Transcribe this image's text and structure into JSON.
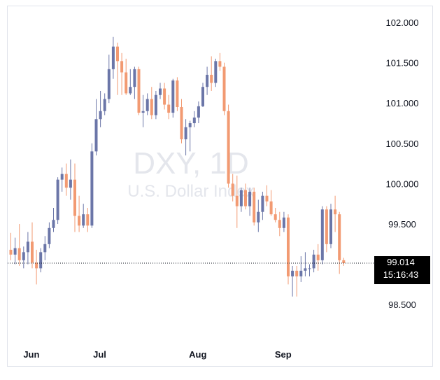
{
  "chart_data": {
    "type": "candlestick",
    "watermark": {
      "title": "DXY, 1D",
      "subtitle": "U.S. Dollar Index"
    },
    "ylim": [
      98.12,
      102.2
    ],
    "y_ticks": [
      "102.000",
      "101.500",
      "101.000",
      "100.500",
      "100.000",
      "99.500",
      "98.500"
    ],
    "x_ticks": [
      {
        "label": "Jun",
        "index": 4
      },
      {
        "label": "Jul",
        "index": 20
      },
      {
        "label": "Aug",
        "index": 43
      },
      {
        "label": "Sep",
        "index": 63
      }
    ],
    "last_price": {
      "value": "99.014",
      "countdown": "15:16:43",
      "level": 99.014
    },
    "colors": {
      "up": "#6b76a8",
      "down": "#f29a72",
      "tag_bg": "#000000",
      "grid_border": "#e0e3eb"
    },
    "candles": [
      [
        99.18,
        99.39,
        99.05,
        99.12
      ],
      [
        99.12,
        99.33,
        99.0,
        99.2
      ],
      [
        99.2,
        99.5,
        98.98,
        99.05
      ],
      [
        99.05,
        99.22,
        98.95,
        99.15
      ],
      [
        99.15,
        99.4,
        99.0,
        99.28
      ],
      [
        99.28,
        99.52,
        98.95,
        99.02
      ],
      [
        99.02,
        99.18,
        98.75,
        98.95
      ],
      [
        98.95,
        99.2,
        98.9,
        99.15
      ],
      [
        99.15,
        99.35,
        99.05,
        99.25
      ],
      [
        99.25,
        99.52,
        99.2,
        99.45
      ],
      [
        99.45,
        99.7,
        99.4,
        99.55
      ],
      [
        99.55,
        100.08,
        99.5,
        100.05
      ],
      [
        100.05,
        100.2,
        99.9,
        100.12
      ],
      [
        100.12,
        100.25,
        99.85,
        99.95
      ],
      [
        99.95,
        100.3,
        99.8,
        100.05
      ],
      [
        100.05,
        100.25,
        99.4,
        99.6
      ],
      [
        99.6,
        99.85,
        99.4,
        99.48
      ],
      [
        99.48,
        99.75,
        99.45,
        99.62
      ],
      [
        99.62,
        99.7,
        99.4,
        99.48
      ],
      [
        99.48,
        100.5,
        99.45,
        100.4
      ],
      [
        100.4,
        101.05,
        100.35,
        100.8
      ],
      [
        100.8,
        101.15,
        100.7,
        100.9
      ],
      [
        100.9,
        101.12,
        100.85,
        101.05
      ],
      [
        101.05,
        101.6,
        101.0,
        101.42
      ],
      [
        101.42,
        101.82,
        101.3,
        101.7
      ],
      [
        101.7,
        101.75,
        101.1,
        101.52
      ],
      [
        101.52,
        101.62,
        101.1,
        101.38
      ],
      [
        101.38,
        101.55,
        101.1,
        101.12
      ],
      [
        101.12,
        101.42,
        101.1,
        101.2
      ],
      [
        101.2,
        101.45,
        101.05,
        101.42
      ],
      [
        101.42,
        101.45,
        100.85,
        100.88
      ],
      [
        100.88,
        101.1,
        100.7,
        100.9
      ],
      [
        100.9,
        101.12,
        100.85,
        101.05
      ],
      [
        101.05,
        101.2,
        100.8,
        100.85
      ],
      [
        100.85,
        101.15,
        100.8,
        101.1
      ],
      [
        101.1,
        101.25,
        101.05,
        101.18
      ],
      [
        101.18,
        101.25,
        100.92,
        100.98
      ],
      [
        100.98,
        101.1,
        100.8,
        100.88
      ],
      [
        100.88,
        101.3,
        100.82,
        101.28
      ],
      [
        101.28,
        101.32,
        100.9,
        100.95
      ],
      [
        100.95,
        101.05,
        100.5,
        100.55
      ],
      [
        100.55,
        100.8,
        100.35,
        100.7
      ],
      [
        100.7,
        100.78,
        100.4,
        100.75
      ],
      [
        100.75,
        100.9,
        100.7,
        100.82
      ],
      [
        100.82,
        101.02,
        100.75,
        100.96
      ],
      [
        100.96,
        101.25,
        100.95,
        101.2
      ],
      [
        101.2,
        101.45,
        101.1,
        101.35
      ],
      [
        101.35,
        101.58,
        101.15,
        101.25
      ],
      [
        101.25,
        101.55,
        101.2,
        101.52
      ],
      [
        101.52,
        101.62,
        101.4,
        101.45
      ],
      [
        101.45,
        101.5,
        100.85,
        100.9
      ],
      [
        100.9,
        100.98,
        99.95,
        100.0
      ],
      [
        100.0,
        100.12,
        99.78,
        99.85
      ],
      [
        99.85,
        100.1,
        99.45,
        99.72
      ],
      [
        99.72,
        99.95,
        99.65,
        99.92
      ],
      [
        99.92,
        100.0,
        99.68,
        99.72
      ],
      [
        99.72,
        99.95,
        99.6,
        99.9
      ],
      [
        99.9,
        99.95,
        99.48,
        99.52
      ],
      [
        99.52,
        99.8,
        99.4,
        99.65
      ],
      [
        99.65,
        99.9,
        99.55,
        99.85
      ],
      [
        99.85,
        99.98,
        99.72,
        99.78
      ],
      [
        99.78,
        99.92,
        99.6,
        99.62
      ],
      [
        99.62,
        99.7,
        99.52,
        99.55
      ],
      [
        99.55,
        99.65,
        99.35,
        99.45
      ],
      [
        99.45,
        99.65,
        99.4,
        99.58
      ],
      [
        99.58,
        99.62,
        98.75,
        98.85
      ],
      [
        98.85,
        98.98,
        98.6,
        98.92
      ],
      [
        98.92,
        98.98,
        98.6,
        98.85
      ],
      [
        98.85,
        99.1,
        98.78,
        98.92
      ],
      [
        98.92,
        99.15,
        98.85,
        98.95
      ],
      [
        98.95,
        99.0,
        98.85,
        98.95
      ],
      [
        98.95,
        99.18,
        98.9,
        99.12
      ],
      [
        99.12,
        99.25,
        98.92,
        99.05
      ],
      [
        99.05,
        99.72,
        99.0,
        99.68
      ],
      [
        99.68,
        99.72,
        99.15,
        99.25
      ],
      [
        99.25,
        99.75,
        99.2,
        99.68
      ],
      [
        99.68,
        99.85,
        99.4,
        99.62
      ],
      [
        99.62,
        99.65,
        98.88,
        99.05
      ],
      [
        99.05,
        99.08,
        98.98,
        99.014
      ]
    ]
  }
}
